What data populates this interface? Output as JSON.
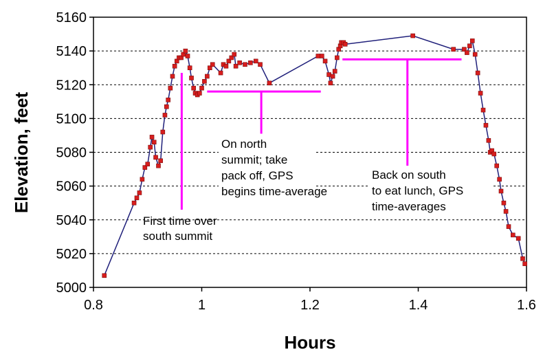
{
  "chart_data": {
    "type": "line",
    "xlabel": "Hours",
    "ylabel": "Elevation, feet",
    "xlim": [
      0.8,
      1.6
    ],
    "ylim": [
      5000,
      5160
    ],
    "xticks": [
      0.8,
      1,
      1.2,
      1.4,
      1.6
    ],
    "xtick_labels": [
      "0.8",
      "1",
      "1.2",
      "1.4",
      "1.6"
    ],
    "yticks": [
      5000,
      5020,
      5040,
      5060,
      5080,
      5100,
      5120,
      5140,
      5160
    ],
    "ytick_labels": [
      "5000",
      "5020",
      "5040",
      "5060",
      "5080",
      "5100",
      "5120",
      "5140",
      "5160"
    ],
    "grid": "horizontal-dashed",
    "series": [
      {
        "color": "#1f1f7a",
        "marker_color": "#d81e1e",
        "points": [
          [
            0.82,
            5007
          ],
          [
            0.875,
            5050
          ],
          [
            0.88,
            5053
          ],
          [
            0.885,
            5056
          ],
          [
            0.89,
            5064
          ],
          [
            0.895,
            5071
          ],
          [
            0.9,
            5073
          ],
          [
            0.905,
            5083
          ],
          [
            0.908,
            5089
          ],
          [
            0.912,
            5086
          ],
          [
            0.915,
            5077
          ],
          [
            0.92,
            5072
          ],
          [
            0.924,
            5075
          ],
          [
            0.928,
            5092
          ],
          [
            0.932,
            5102
          ],
          [
            0.935,
            5107
          ],
          [
            0.938,
            5111
          ],
          [
            0.942,
            5118
          ],
          [
            0.946,
            5125
          ],
          [
            0.95,
            5131
          ],
          [
            0.954,
            5134
          ],
          [
            0.958,
            5136
          ],
          [
            0.962,
            5136
          ],
          [
            0.966,
            5138
          ],
          [
            0.97,
            5140
          ],
          [
            0.974,
            5137
          ],
          [
            0.978,
            5130
          ],
          [
            0.981,
            5124
          ],
          [
            0.985,
            5118
          ],
          [
            0.988,
            5115
          ],
          [
            0.992,
            5114
          ],
          [
            0.996,
            5115
          ],
          [
            1.0,
            5118
          ],
          [
            1.005,
            5122
          ],
          [
            1.01,
            5125
          ],
          [
            1.015,
            5130
          ],
          [
            1.02,
            5132
          ],
          [
            1.035,
            5127
          ],
          [
            1.04,
            5132
          ],
          [
            1.045,
            5131
          ],
          [
            1.05,
            5134
          ],
          [
            1.055,
            5136
          ],
          [
            1.06,
            5138
          ],
          [
            1.063,
            5131
          ],
          [
            1.07,
            5133
          ],
          [
            1.08,
            5132
          ],
          [
            1.09,
            5133
          ],
          [
            1.1,
            5134
          ],
          [
            1.108,
            5132
          ],
          [
            1.125,
            5121
          ],
          [
            1.215,
            5137
          ],
          [
            1.222,
            5137
          ],
          [
            1.228,
            5134
          ],
          [
            1.235,
            5126
          ],
          [
            1.238,
            5121
          ],
          [
            1.242,
            5125
          ],
          [
            1.246,
            5128
          ],
          [
            1.25,
            5136
          ],
          [
            1.253,
            5141
          ],
          [
            1.256,
            5143
          ],
          [
            1.258,
            5145
          ],
          [
            1.262,
            5145
          ],
          [
            1.265,
            5144
          ],
          [
            1.39,
            5149
          ],
          [
            1.465,
            5141
          ],
          [
            1.485,
            5141
          ],
          [
            1.49,
            5139
          ],
          [
            1.495,
            5143
          ],
          [
            1.5,
            5146
          ],
          [
            1.505,
            5138
          ],
          [
            1.51,
            5127
          ],
          [
            1.515,
            5115
          ],
          [
            1.52,
            5105
          ],
          [
            1.525,
            5096
          ],
          [
            1.53,
            5087
          ],
          [
            1.533,
            5080
          ],
          [
            1.536,
            5081
          ],
          [
            1.54,
            5079
          ],
          [
            1.545,
            5072
          ],
          [
            1.55,
            5064
          ],
          [
            1.553,
            5057
          ],
          [
            1.558,
            5050
          ],
          [
            1.562,
            5045
          ],
          [
            1.567,
            5036
          ],
          [
            1.575,
            5031
          ],
          [
            1.585,
            5029
          ],
          [
            1.593,
            5017
          ],
          [
            1.597,
            5014
          ]
        ]
      }
    ],
    "annotations": [
      {
        "lines": [
          "First time over",
          "south summit"
        ],
        "vline": {
          "x": 0.963,
          "y_top": 5127,
          "y_bottom": 5046
        }
      },
      {
        "lines": [
          "On north",
          "summit; take",
          "pack off, GPS",
          "begins time-average"
        ],
        "bracket": {
          "x_start": 1.01,
          "x_end": 1.22,
          "y": 5116,
          "stem_x": 1.11,
          "stem_bottom": 5091
        }
      },
      {
        "lines": [
          "Back on south",
          "to eat lunch, GPS",
          "time-averages"
        ],
        "bracket": {
          "x_start": 1.26,
          "x_end": 1.48,
          "y": 5135,
          "stem_x": 1.38,
          "stem_bottom": 5070
        }
      }
    ]
  }
}
